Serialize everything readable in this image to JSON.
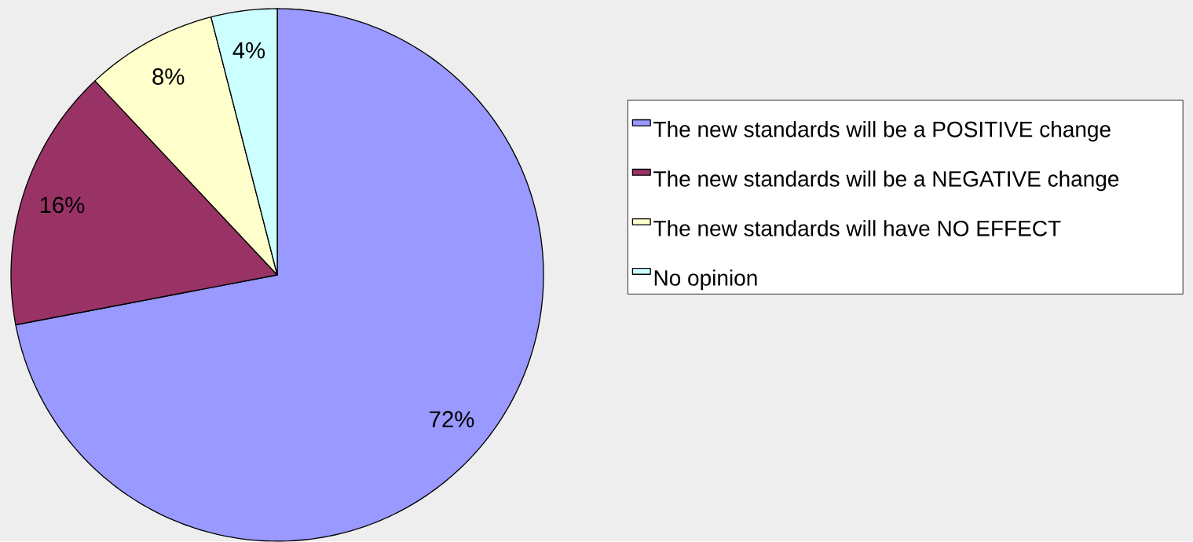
{
  "chart_data": {
    "type": "pie",
    "categories": [
      "The new standards will be a POSITIVE change",
      "The new standards will be a NEGATIVE change",
      "The new standards will have NO EFFECT",
      "No opinion"
    ],
    "values": [
      72,
      16,
      8,
      4
    ],
    "colors": [
      "#9999ff",
      "#993366",
      "#ffffcc",
      "#ccffff"
    ],
    "value_labels": [
      "72%",
      "16%",
      "8%",
      "4%"
    ],
    "legend": "right"
  }
}
